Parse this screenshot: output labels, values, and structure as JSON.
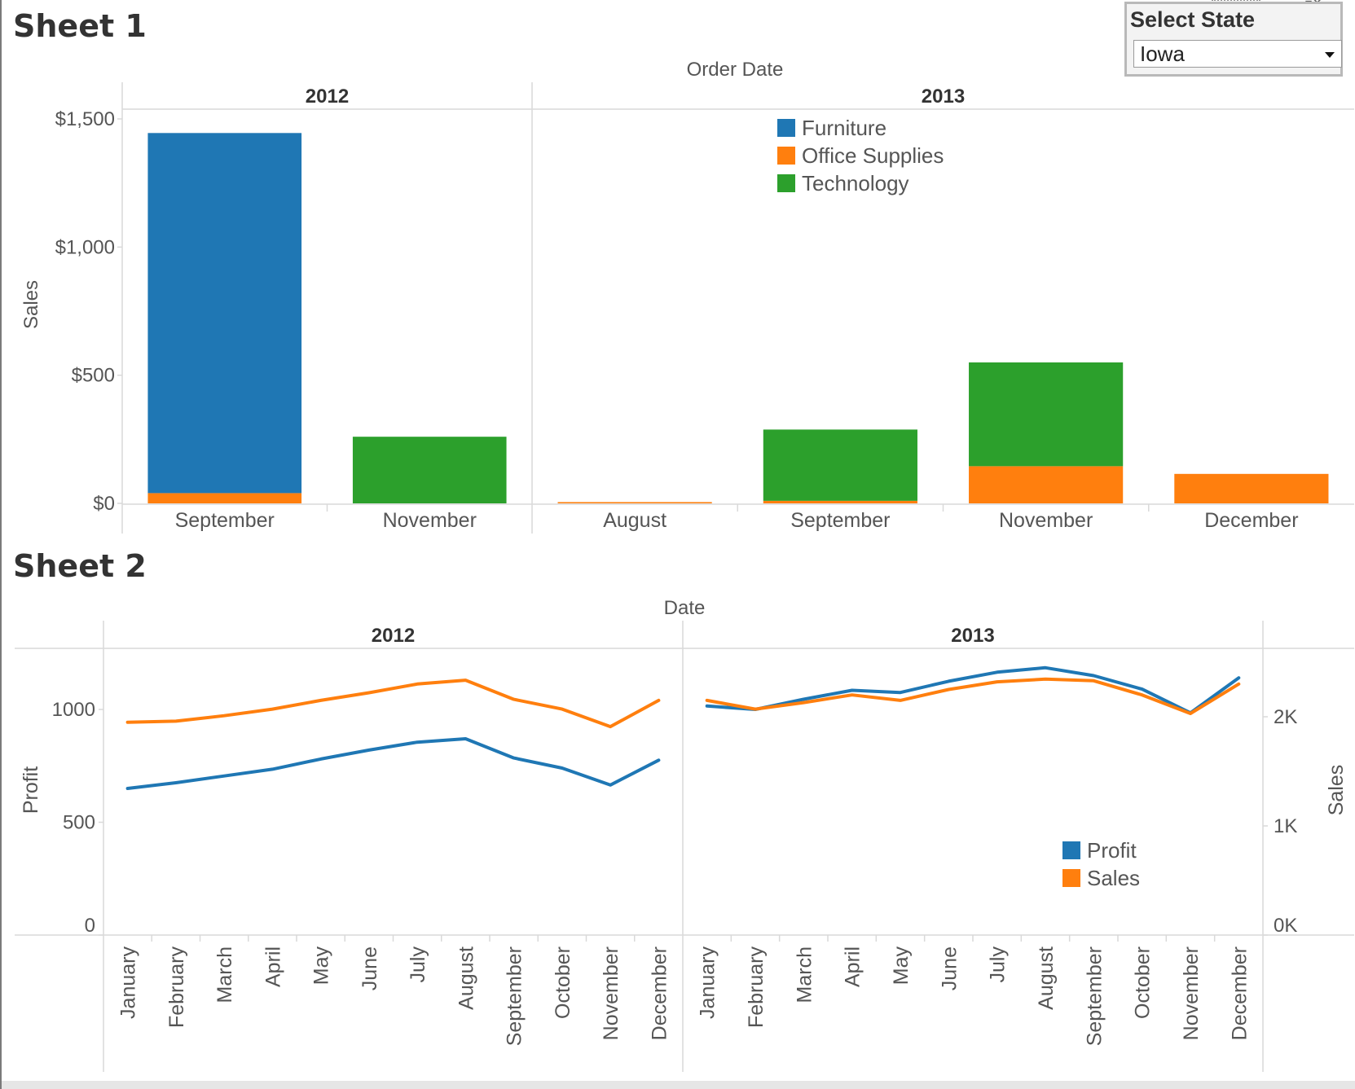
{
  "sheet1": {
    "title": "Sheet 1"
  },
  "sheet2": {
    "title": "Sheet 2"
  },
  "filter": {
    "title": "Select State",
    "selected": "Iowa"
  },
  "colors": {
    "furniture": "#1f77b4",
    "office_supplies": "#ff7f0e",
    "technology": "#2ca02c",
    "profit": "#1f77b4",
    "sales": "#ff7f0e"
  },
  "chart_data": [
    {
      "type": "bar",
      "stacked": true,
      "column_header_title": "Order Date",
      "ylabel": "Sales",
      "ylim": [
        0,
        1600
      ],
      "yticks": [
        0,
        500,
        1000,
        1500
      ],
      "ytick_labels": [
        "$0",
        "$500",
        "$1,000",
        "$1,500"
      ],
      "grid": false,
      "legend": "top-center",
      "panes": [
        {
          "year": "2012",
          "categories": [
            "September",
            "November"
          ],
          "series": [
            {
              "name": "Furniture",
              "values": [
                1405,
                0
              ]
            },
            {
              "name": "Office Supplies",
              "values": [
                40,
                0
              ]
            },
            {
              "name": "Technology",
              "values": [
                0,
                260
              ]
            }
          ]
        },
        {
          "year": "2013",
          "categories": [
            "August",
            "September",
            "November",
            "December"
          ],
          "series": [
            {
              "name": "Furniture",
              "values": [
                0,
                0,
                0,
                0
              ]
            },
            {
              "name": "Office Supplies",
              "values": [
                5,
                10,
                145,
                115
              ]
            },
            {
              "name": "Technology",
              "values": [
                0,
                278,
                405,
                0
              ]
            }
          ]
        }
      ]
    },
    {
      "type": "line",
      "dual_axis": true,
      "column_header_title": "Date",
      "ylabel_left": "Profit",
      "ylabel_right": "Sales",
      "ylim_left": [
        0,
        1275
      ],
      "yticks_left": [
        0,
        500,
        1000
      ],
      "ytick_labels_left": [
        "0",
        "500",
        "1000"
      ],
      "ylim_right": [
        0,
        2550
      ],
      "yticks_right": [
        0,
        1000,
        2000
      ],
      "ytick_labels_right": [
        "0K",
        "1K",
        "2K"
      ],
      "grid": false,
      "legend": "bottom-right",
      "panes": [
        {
          "year": "2012",
          "categories": [
            "January",
            "February",
            "March",
            "April",
            "May",
            "June",
            "July",
            "August",
            "September",
            "October",
            "November",
            "December"
          ],
          "series": [
            {
              "name": "Profit",
              "axis": "left",
              "values": [
                650,
                675,
                705,
                735,
                780,
                820,
                855,
                870,
                785,
                740,
                665,
                775
              ]
            },
            {
              "name": "Sales",
              "axis": "right",
              "values": [
                1950,
                1960,
                2010,
                2070,
                2150,
                2220,
                2300,
                2335,
                2160,
                2070,
                1910,
                2150
              ]
            }
          ]
        },
        {
          "year": "2013",
          "categories": [
            "January",
            "February",
            "March",
            "April",
            "May",
            "June",
            "July",
            "August",
            "September",
            "October",
            "November",
            "December"
          ],
          "series": [
            {
              "name": "Profit",
              "axis": "left",
              "values": [
                1015,
                1000,
                1045,
                1085,
                1075,
                1125,
                1165,
                1185,
                1150,
                1090,
                985,
                1140
              ]
            },
            {
              "name": "Sales",
              "axis": "right",
              "values": [
                2150,
                2070,
                2130,
                2200,
                2150,
                2250,
                2320,
                2345,
                2330,
                2200,
                2030,
                2300
              ]
            }
          ]
        }
      ]
    }
  ]
}
